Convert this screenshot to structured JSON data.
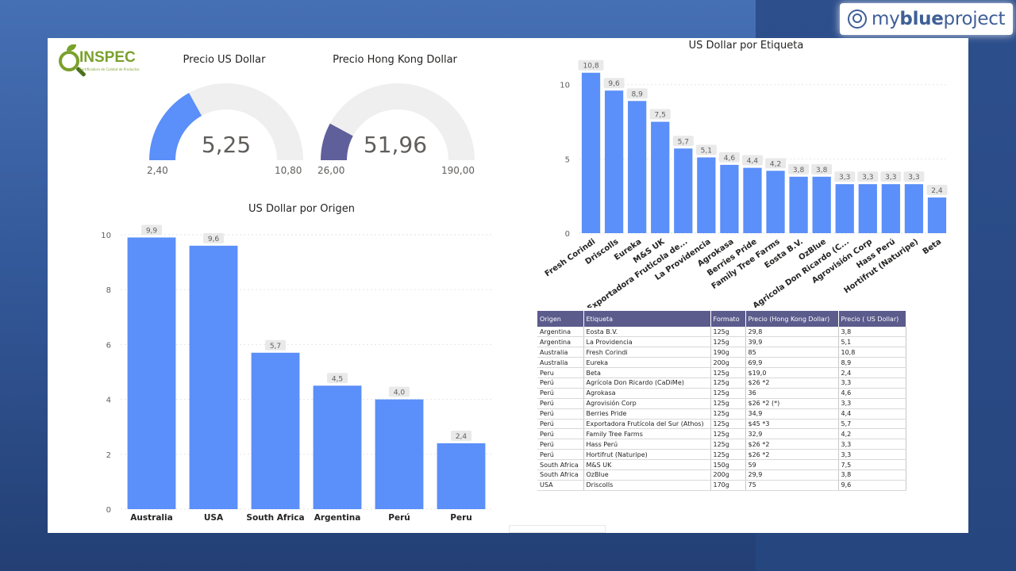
{
  "brand": {
    "prefix": "my",
    "strong": "blue",
    "suffix": "project"
  },
  "logo": {
    "text": "INSPEC",
    "subtitle": "Certificadora de Calidad de Productos"
  },
  "gauges": [
    {
      "title": "Precio US Dollar",
      "value": 5.25,
      "value_label": "5,25",
      "min": 2.4,
      "min_label": "2,40",
      "max": 10.8,
      "max_label": "10,80",
      "color": "#5b8ff9"
    },
    {
      "title": "Precio Hong Kong Dollar",
      "value": 51.96,
      "value_label": "51,96",
      "min": 26.0,
      "min_label": "26,00",
      "max": 190.0,
      "max_label": "190,00",
      "color": "#5f5f9c"
    }
  ],
  "chart_data": [
    {
      "type": "bar",
      "title": "US Dollar por Origen",
      "categories": [
        "Australia",
        "USA",
        "South Africa",
        "Argentina",
        "Perú",
        "Peru"
      ],
      "values": [
        9.9,
        9.6,
        5.7,
        4.5,
        4.0,
        2.4
      ],
      "value_labels": [
        "9,9",
        "9,6",
        "5,7",
        "4,5",
        "4,0",
        "2,4"
      ],
      "ylim": [
        0,
        10
      ],
      "yticks": [
        0,
        2,
        4,
        6,
        8,
        10
      ],
      "color": "#5b8ff9",
      "grid": true
    },
    {
      "type": "bar",
      "title": "US Dollar por Etiqueta",
      "categories": [
        "Fresh Corindi",
        "Driscolls",
        "Eureka",
        "M&S UK",
        "Exportadora Fruticola de...",
        "La Providencia",
        "Agrokasa",
        "Berries Pride",
        "Family Tree Farms",
        "Eosta B.V.",
        "OzBlue",
        "Agricola Don Ricardo (C...",
        "Agrovisión Corp",
        "Hass Perú",
        "Hortifrut (Naturipe)",
        "Beta"
      ],
      "values": [
        10.8,
        9.6,
        8.9,
        7.5,
        5.7,
        5.1,
        4.6,
        4.4,
        4.2,
        3.8,
        3.8,
        3.3,
        3.3,
        3.3,
        3.3,
        2.4
      ],
      "value_labels": [
        "10,8",
        "9,6",
        "8,9",
        "7,5",
        "5,7",
        "5,1",
        "4,6",
        "4,4",
        "4,2",
        "3,8",
        "3,8",
        "3,3",
        "3,3",
        "3,3",
        "3,3",
        "2,4"
      ],
      "ylim": [
        0,
        11
      ],
      "yticks": [
        0,
        5,
        10
      ],
      "color": "#5b8ff9",
      "grid": true
    },
    {
      "type": "table",
      "columns": [
        "Origen",
        "Etiqueta",
        "Formato",
        "Precio (Hong Kong Dollar)",
        "Precio ( US Dollar)"
      ],
      "rows": [
        [
          "Argentina",
          "Eosta B.V.",
          "125g",
          "29,8",
          "3,8"
        ],
        [
          "Argentina",
          "La Providencia",
          "125g",
          "39,9",
          "5,1"
        ],
        [
          "Australia",
          "Fresh Corindi",
          "190g",
          "85",
          "10,8"
        ],
        [
          "Australia",
          "Eureka",
          "200g",
          "69,9",
          "8,9"
        ],
        [
          "Peru",
          "Beta",
          "125g",
          "$19,0",
          "2,4"
        ],
        [
          "Perú",
          "Agrícola Don Ricardo (CaDiMe)",
          "125g",
          "$26 *2",
          "3,3"
        ],
        [
          "Perú",
          "Agrokasa",
          "125g",
          "36",
          "4,6"
        ],
        [
          "Perú",
          "Agrovisión Corp",
          "125g",
          "$26 *2 (*)",
          "3,3"
        ],
        [
          "Perú",
          "Berries Pride",
          "125g",
          "34,9",
          "4,4"
        ],
        [
          "Perú",
          "Exportadora Frutícola del Sur (Athos)",
          "125g",
          "$45 *3",
          "5,7"
        ],
        [
          "Perú",
          "Family Tree Farms",
          "125g",
          "32,9",
          "4,2"
        ],
        [
          "Perú",
          "Hass Perú",
          "125g",
          "$26 *2",
          "3,3"
        ],
        [
          "Perú",
          "Hortifrut (Naturipe)",
          "125g",
          "$26 *2",
          "3,3"
        ],
        [
          "South Africa",
          "M&S UK",
          "150g",
          "59",
          "7,5"
        ],
        [
          "South Africa",
          "OzBlue",
          "200g",
          "29,9",
          "3,8"
        ],
        [
          "USA",
          "Driscolls",
          "170g",
          "75",
          "9,6"
        ]
      ]
    }
  ]
}
